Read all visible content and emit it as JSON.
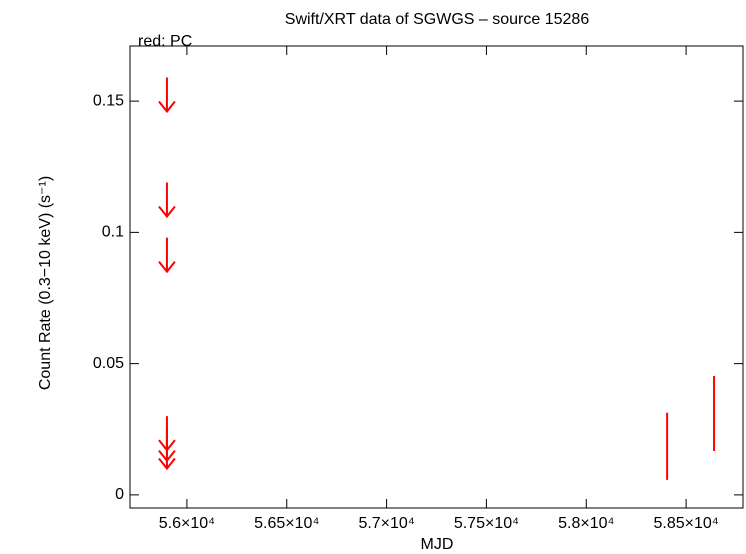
{
  "chart_data": {
    "type": "scatter",
    "title": "Swift/XRT data of SGWGS – source 15286",
    "subtitle": "red: PC",
    "x_label": "MJD",
    "y_label": "Count Rate (0.3−10 keV) (s⁻¹)",
    "xlim": [
      55715,
      58785
    ],
    "ylim": [
      -0.005,
      0.171
    ],
    "xticks": [
      {
        "value": 56000,
        "label": "5.6×10⁴"
      },
      {
        "value": 56500,
        "label": "5.65×10⁴"
      },
      {
        "value": 57000,
        "label": "5.7×10⁴"
      },
      {
        "value": 57500,
        "label": "5.75×10⁴"
      },
      {
        "value": 58000,
        "label": "5.8×10⁴"
      },
      {
        "value": 58500,
        "label": "5.85×10⁴"
      }
    ],
    "yticks": [
      0,
      0.05,
      0.1,
      0.15
    ],
    "upper_limits": {
      "color": "#ff0000",
      "x": [
        55900,
        55900,
        55900,
        55900,
        55900,
        55900
      ],
      "values": [
        0.159,
        0.119,
        0.098,
        0.03,
        0.026,
        0.023
      ]
    },
    "detections": {
      "color": "#ff0000",
      "x": [
        58405,
        58640
      ],
      "values": [
        0.0185,
        0.031
      ],
      "errors": [
        0.0128,
        0.0143
      ]
    }
  }
}
